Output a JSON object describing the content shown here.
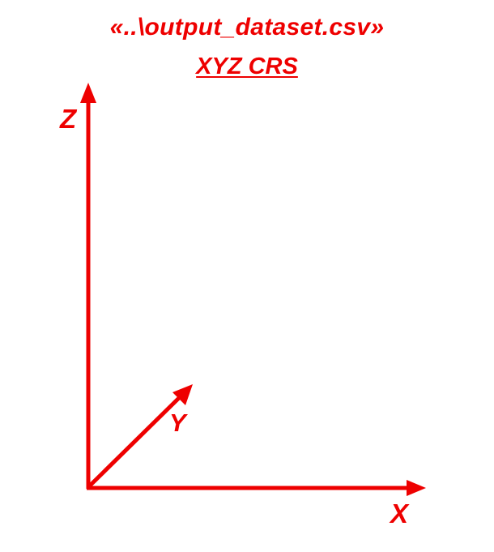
{
  "diagram": {
    "title": "«..\\output_dataset.csv»",
    "subtitle": "XYZ CRS",
    "axes": {
      "x_label": "X",
      "y_label": "Y",
      "z_label": "Z"
    },
    "colors": {
      "axis": "#ee0000",
      "text": "#ee0000",
      "background": "#ffffff"
    }
  }
}
